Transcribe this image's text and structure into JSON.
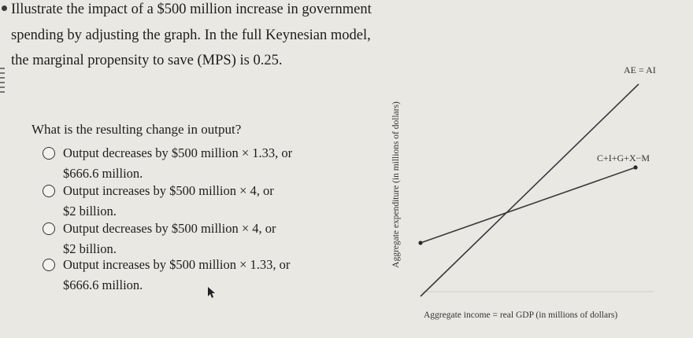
{
  "question": {
    "line1": "Illustrate the impact of a $500 million increase in government",
    "line2": "spending by adjusting the graph. In the full Keynesian model,",
    "line3": "the marginal propensity to save (MPS) is 0.25."
  },
  "subquestion": "What is the resulting change in output?",
  "options": [
    {
      "line1": "Output decreases by $500 million × 1.33, or",
      "line2": "$666.6 million."
    },
    {
      "line1": "Output increases by $500 million × 4, or",
      "line2": "$2 billion."
    },
    {
      "line1": "Output decreases by $500 million × 4, or",
      "line2": "$2 billion."
    },
    {
      "line1": "Output increases by $500 million × 1.33, or",
      "line2": "$666.6 million."
    }
  ],
  "graph": {
    "ylabel": "Aggregate expenditure (in millions of dollars)",
    "xlabel": "Aggregate income = real GDP (in millions of dollars)",
    "line_ae_label": "AE = AI",
    "line_ai_label": "C+I+G+X−M"
  },
  "colors": {
    "background": "#e9e8e2",
    "text": "#1d1d1d",
    "line": "#3a3a3a",
    "handle": "#2a2a2a"
  }
}
